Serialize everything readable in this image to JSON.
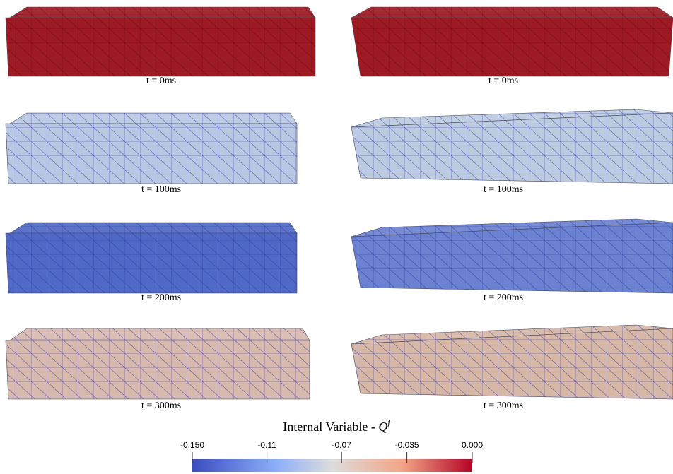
{
  "panels": [
    {
      "caption": "t = 0ms"
    },
    {
      "caption": "t = 0ms"
    },
    {
      "caption": "t = 100ms"
    },
    {
      "caption": "t = 100ms"
    },
    {
      "caption": "t = 200ms"
    },
    {
      "caption": "t = 200ms"
    },
    {
      "caption": "t = 300ms"
    },
    {
      "caption": "t = 300ms"
    }
  ],
  "colorbar": {
    "title": "Internal Variable - ",
    "symbol": "Q",
    "superscript": "f",
    "range": [
      -0.15,
      0
    ],
    "ticks": [
      {
        "value": -0.15,
        "label": "-0.150"
      },
      -0.11,
      -0.07,
      -0.035,
      {
        "value": 0,
        "label": "0.000"
      }
    ]
  }
}
